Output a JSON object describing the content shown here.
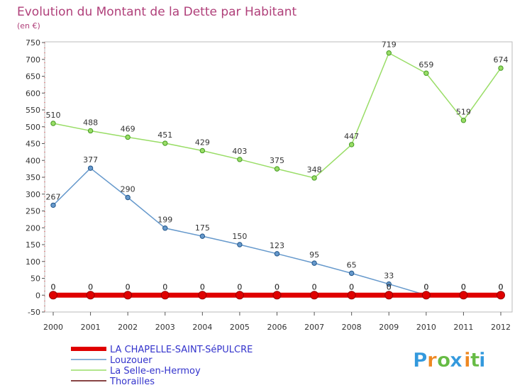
{
  "chart_data": {
    "type": "line",
    "title": "Evolution du Montant de la Dette par Habitant",
    "subtitle": "(en €)",
    "xlabel": "",
    "ylabel": "",
    "x": [
      "2000",
      "2001",
      "2002",
      "2003",
      "2004",
      "2005",
      "2006",
      "2007",
      "2008",
      "2009",
      "2010",
      "2011",
      "2012"
    ],
    "ylim": [
      -50,
      750
    ],
    "yticks": [
      -50,
      0,
      50,
      100,
      150,
      200,
      250,
      300,
      350,
      400,
      450,
      500,
      550,
      600,
      650,
      700,
      750
    ],
    "grid": false,
    "legend_position": "bottom-left",
    "series": [
      {
        "name": "LA CHAPELLE-SAINT-SéPULCRE",
        "color": "#e00000",
        "values": [
          0,
          0,
          0,
          0,
          0,
          0,
          0,
          0,
          0,
          0,
          0,
          0,
          0
        ],
        "labels": [
          "0",
          "0",
          "0",
          "0",
          "0",
          "0",
          "0",
          "0",
          "0",
          "0",
          "0",
          "0",
          "0"
        ]
      },
      {
        "name": "Louzouer",
        "color": "#6699cc",
        "values": [
          267,
          377,
          290,
          199,
          175,
          150,
          123,
          95,
          65,
          33,
          0,
          0,
          0
        ],
        "labels": [
          "267",
          "377",
          "290",
          "199",
          "175",
          "150",
          "123",
          "95",
          "65",
          "33",
          "0",
          "0",
          "0"
        ]
      },
      {
        "name": "La Selle-en-Hermoy",
        "color": "#99dd66",
        "values": [
          510,
          488,
          469,
          451,
          429,
          403,
          375,
          348,
          447,
          719,
          659,
          519,
          674
        ],
        "labels": [
          "510",
          "488",
          "469",
          "451",
          "429",
          "403",
          "375",
          "348",
          "447",
          "719",
          "659",
          "519",
          "674"
        ]
      },
      {
        "name": "Thorailles",
        "color": "#884444",
        "values": [
          0,
          0,
          0,
          0,
          0,
          0,
          0,
          0,
          0,
          0,
          0,
          0,
          0
        ],
        "labels": [
          "0",
          "0",
          "0",
          "0",
          "0",
          "0",
          "0",
          "0",
          "0",
          "0",
          "0",
          "0",
          "0"
        ]
      }
    ]
  },
  "logo": {
    "letters": [
      "P",
      "r",
      "o",
      "x",
      "i",
      "t",
      "i"
    ],
    "colors": [
      "#3399dd",
      "#ee8822",
      "#66bb44",
      "#3399dd",
      "#ee8822",
      "#66bb44",
      "#3399dd"
    ]
  }
}
